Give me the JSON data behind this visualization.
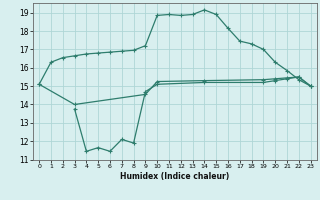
{
  "line1_x": [
    0,
    1,
    2,
    3,
    4,
    5,
    6,
    7,
    8,
    9,
    10,
    11,
    12,
    13,
    14,
    15,
    16,
    17,
    18,
    19,
    20,
    21,
    22,
    23
  ],
  "line1_y": [
    15.1,
    16.3,
    16.55,
    16.65,
    16.75,
    16.8,
    16.85,
    16.9,
    16.95,
    17.2,
    18.85,
    18.9,
    18.85,
    18.9,
    19.15,
    18.9,
    18.15,
    17.45,
    17.3,
    17.0,
    16.3,
    15.85,
    15.35,
    15.0
  ],
  "line2_x": [
    0,
    3,
    9,
    10,
    14,
    19,
    20,
    21,
    22,
    23
  ],
  "line2_y": [
    15.1,
    14.0,
    14.55,
    15.25,
    15.3,
    15.35,
    15.4,
    15.45,
    15.5,
    15.0
  ],
  "line3_x": [
    3,
    4,
    5,
    6,
    7,
    8,
    9,
    10,
    14,
    19,
    20,
    21,
    22,
    23
  ],
  "line3_y": [
    13.75,
    11.45,
    11.65,
    11.45,
    12.1,
    11.9,
    14.7,
    15.1,
    15.2,
    15.2,
    15.3,
    15.4,
    15.5,
    15.0
  ],
  "line_color": "#2e7d6d",
  "bg_color": "#d8efef",
  "grid_color": "#afd6d6",
  "xlabel": "Humidex (Indice chaleur)",
  "xlim": [
    -0.5,
    23.5
  ],
  "ylim": [
    11,
    19.5
  ],
  "yticks": [
    11,
    12,
    13,
    14,
    15,
    16,
    17,
    18,
    19
  ],
  "xticks": [
    0,
    1,
    2,
    3,
    4,
    5,
    6,
    7,
    8,
    9,
    10,
    11,
    12,
    13,
    14,
    15,
    16,
    17,
    18,
    19,
    20,
    21,
    22,
    23
  ]
}
